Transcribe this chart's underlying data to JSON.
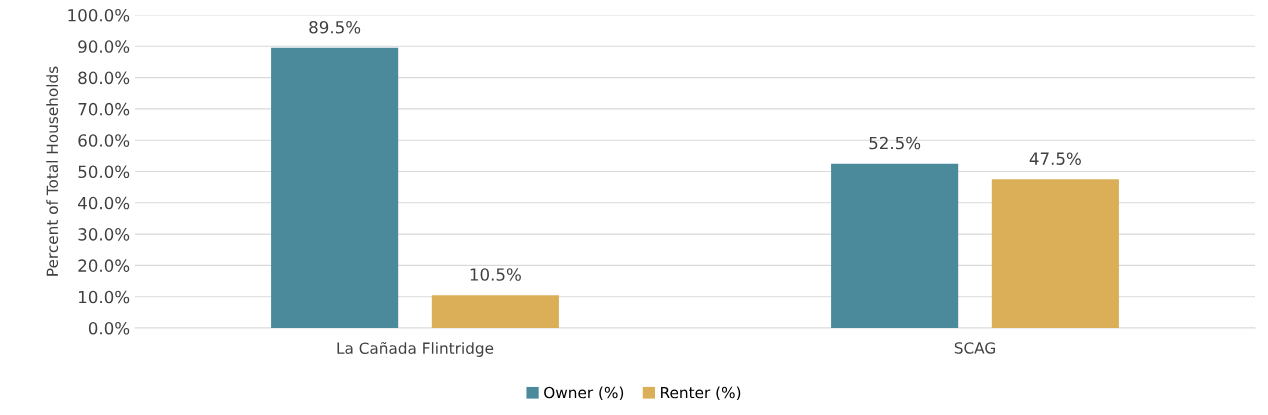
{
  "chart_data": {
    "type": "bar",
    "ylabel": "Percent of Total Households",
    "categories": [
      "La Cañada Flintridge",
      "SCAG"
    ],
    "series": [
      {
        "name": "Owner (%)",
        "color": "#4a8a9a",
        "values": [
          89.5,
          52.5
        ],
        "value_labels": [
          "89.5%",
          "52.5%"
        ]
      },
      {
        "name": "Renter (%)",
        "color": "#dbae58",
        "values": [
          10.5,
          47.5
        ],
        "value_labels": [
          "10.5%",
          "47.5%"
        ]
      }
    ],
    "ylim": [
      0,
      100
    ],
    "yticks": [
      {
        "value": 0,
        "label": "0.0%"
      },
      {
        "value": 10,
        "label": "10.0%"
      },
      {
        "value": 20,
        "label": "20.0%"
      },
      {
        "value": 30,
        "label": "30.0%"
      },
      {
        "value": 40,
        "label": "40.0%"
      },
      {
        "value": 50,
        "label": "50.0%"
      },
      {
        "value": 60,
        "label": "60.0%"
      },
      {
        "value": 70,
        "label": "70.0%"
      },
      {
        "value": 80,
        "label": "80.0%"
      },
      {
        "value": 90,
        "label": "90.0%"
      },
      {
        "value": 100,
        "label": "100.0%"
      }
    ],
    "grid": "y",
    "legend": "bottom"
  }
}
